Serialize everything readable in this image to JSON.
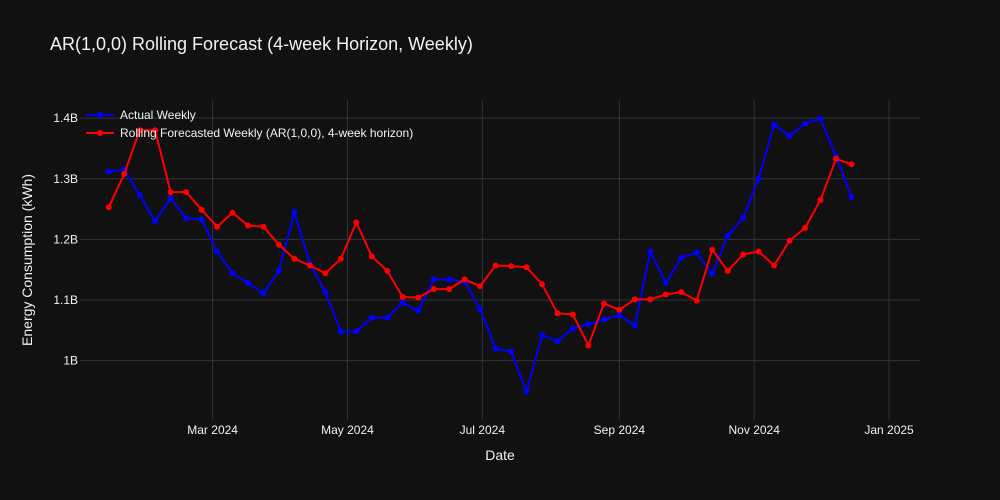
{
  "chart_data": {
    "type": "line",
    "title": "AR(1,0,0) Rolling Forecast (4-week Horizon, Weekly)",
    "xlabel": "Date",
    "ylabel": "Energy Consumption (kWh)",
    "x_ticks": [
      {
        "date": "2024-03-01",
        "label": "Mar 2024"
      },
      {
        "date": "2024-05-01",
        "label": "May 2024"
      },
      {
        "date": "2024-07-01",
        "label": "Jul 2024"
      },
      {
        "date": "2024-09-01",
        "label": "Sep 2024"
      },
      {
        "date": "2024-11-01",
        "label": "Nov 2024"
      },
      {
        "date": "2025-01-01",
        "label": "Jan 2025"
      }
    ],
    "y_ticks": [
      {
        "value": 1.0,
        "label": "1B"
      },
      {
        "value": 1.1,
        "label": "1.1B"
      },
      {
        "value": 1.2,
        "label": "1.2B"
      },
      {
        "value": 1.3,
        "label": "1.3B"
      },
      {
        "value": 1.4,
        "label": "1.4B"
      }
    ],
    "xlim": [
      "2024-01-01",
      "2025-01-15"
    ],
    "ylim": [
      0.935,
      1.43
    ],
    "y_unit_note": "values in billions of kWh",
    "grid": true,
    "legend_position": "top-left",
    "series": [
      {
        "name": "Actual Weekly",
        "color": "#0000ff",
        "points": [
          [
            "2024-01-14",
            1.312
          ],
          [
            "2024-01-21",
            1.315
          ],
          [
            "2024-01-28",
            1.273
          ],
          [
            "2024-02-04",
            1.23
          ],
          [
            "2024-02-11",
            1.268
          ],
          [
            "2024-02-18",
            1.235
          ],
          [
            "2024-02-25",
            1.233
          ],
          [
            "2024-03-03",
            1.18
          ],
          [
            "2024-03-10",
            1.144
          ],
          [
            "2024-03-17",
            1.128
          ],
          [
            "2024-03-24",
            1.111
          ],
          [
            "2024-03-31",
            1.148
          ],
          [
            "2024-04-07",
            1.245
          ],
          [
            "2024-04-14",
            1.16
          ],
          [
            "2024-04-21",
            1.113
          ],
          [
            "2024-04-28",
            1.048
          ],
          [
            "2024-05-05",
            1.048
          ],
          [
            "2024-05-12",
            1.071
          ],
          [
            "2024-05-19",
            1.071
          ],
          [
            "2024-05-26",
            1.096
          ],
          [
            "2024-06-02",
            1.082
          ],
          [
            "2024-06-09",
            1.134
          ],
          [
            "2024-06-16",
            1.134
          ],
          [
            "2024-06-23",
            1.13
          ],
          [
            "2024-06-30",
            1.085
          ],
          [
            "2024-07-07",
            1.02
          ],
          [
            "2024-07-14",
            1.015
          ],
          [
            "2024-07-21",
            0.949
          ],
          [
            "2024-07-28",
            1.042
          ],
          [
            "2024-08-04",
            1.032
          ],
          [
            "2024-08-11",
            1.053
          ],
          [
            "2024-08-18",
            1.06
          ],
          [
            "2024-08-25",
            1.068
          ],
          [
            "2024-09-01",
            1.075
          ],
          [
            "2024-09-08",
            1.058
          ],
          [
            "2024-09-15",
            1.18
          ],
          [
            "2024-09-22",
            1.128
          ],
          [
            "2024-09-29",
            1.17
          ],
          [
            "2024-10-06",
            1.178
          ],
          [
            "2024-10-13",
            1.143
          ],
          [
            "2024-10-20",
            1.206
          ],
          [
            "2024-10-27",
            1.236
          ],
          [
            "2024-11-03",
            1.3
          ],
          [
            "2024-11-10",
            1.389
          ],
          [
            "2024-11-17",
            1.371
          ],
          [
            "2024-11-24",
            1.391
          ],
          [
            "2024-12-01",
            1.399
          ],
          [
            "2024-12-08",
            1.337
          ],
          [
            "2024-12-15",
            1.27
          ]
        ]
      },
      {
        "name": "Rolling Forecasted Weekly (AR(1,0,0), 4-week horizon)",
        "color": "#ff0000",
        "points": [
          [
            "2024-01-14",
            1.253
          ],
          [
            "2024-01-21",
            1.308
          ],
          [
            "2024-01-28",
            1.38
          ],
          [
            "2024-02-04",
            1.38
          ],
          [
            "2024-02-11",
            1.278
          ],
          [
            "2024-02-18",
            1.278
          ],
          [
            "2024-02-25",
            1.249
          ],
          [
            "2024-03-03",
            1.221
          ],
          [
            "2024-03-10",
            1.244
          ],
          [
            "2024-03-17",
            1.223
          ],
          [
            "2024-03-24",
            1.221
          ],
          [
            "2024-03-31",
            1.191
          ],
          [
            "2024-04-07",
            1.168
          ],
          [
            "2024-04-14",
            1.157
          ],
          [
            "2024-04-21",
            1.144
          ],
          [
            "2024-04-28",
            1.168
          ],
          [
            "2024-05-05",
            1.228
          ],
          [
            "2024-05-12",
            1.172
          ],
          [
            "2024-05-19",
            1.148
          ],
          [
            "2024-05-26",
            1.105
          ],
          [
            "2024-06-02",
            1.104
          ],
          [
            "2024-06-09",
            1.118
          ],
          [
            "2024-06-16",
            1.118
          ],
          [
            "2024-06-23",
            1.134
          ],
          [
            "2024-06-30",
            1.123
          ],
          [
            "2024-07-07",
            1.157
          ],
          [
            "2024-07-14",
            1.156
          ],
          [
            "2024-07-21",
            1.154
          ],
          [
            "2024-07-28",
            1.126
          ],
          [
            "2024-08-04",
            1.078
          ],
          [
            "2024-08-11",
            1.076
          ],
          [
            "2024-08-18",
            1.025
          ],
          [
            "2024-08-25",
            1.094
          ],
          [
            "2024-09-01",
            1.084
          ],
          [
            "2024-09-08",
            1.101
          ],
          [
            "2024-09-15",
            1.101
          ],
          [
            "2024-09-22",
            1.109
          ],
          [
            "2024-09-29",
            1.113
          ],
          [
            "2024-10-06",
            1.099
          ],
          [
            "2024-10-13",
            1.183
          ],
          [
            "2024-10-20",
            1.148
          ],
          [
            "2024-10-27",
            1.175
          ],
          [
            "2024-11-03",
            1.18
          ],
          [
            "2024-11-10",
            1.157
          ],
          [
            "2024-11-17",
            1.198
          ],
          [
            "2024-11-24",
            1.219
          ],
          [
            "2024-12-01",
            1.265
          ],
          [
            "2024-12-08",
            1.333
          ],
          [
            "2024-12-15",
            1.324
          ]
        ]
      }
    ]
  }
}
